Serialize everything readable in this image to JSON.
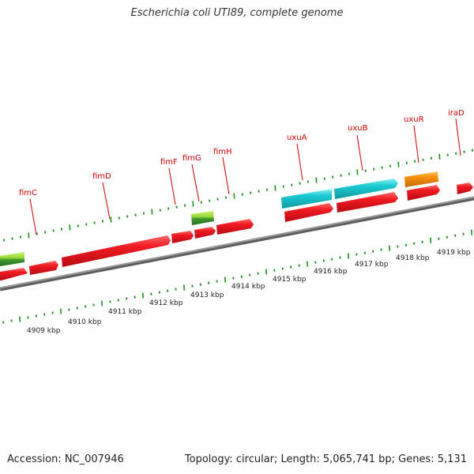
{
  "title": "Escherichia coli UTI89, complete genome",
  "footer": {
    "accession": "Accession: NC_007946",
    "summary": "Topology: circular; Length: 5,065,741 bp; Genes: 5,131"
  },
  "colors": {
    "gene_label": "#cc0000",
    "cds": "#e8121b",
    "cds_top": "#ff5a5a",
    "rna": "#18c4cc",
    "rna_top": "#7fe6ea",
    "other": "#f28a10",
    "other_top": "#ffc060",
    "gene_green": "#2e8b2e",
    "gene_green_top": "#a8e83c",
    "backbone": "#808080",
    "tick": "#1e8b1e"
  },
  "gene_labels": [
    "fimC",
    "fimD",
    "fimF",
    "fimG",
    "fimH",
    "uxuA",
    "uxuB",
    "uxuR",
    "iraD"
  ],
  "kbp_labels": [
    "4909 kbp",
    "4910 kbp",
    "4911 kbp",
    "4912 kbp",
    "4913 kbp",
    "4914 kbp",
    "4915 kbp",
    "4916 kbp",
    "4917 kbp",
    "4918 kbp",
    "4919 kbp"
  ]
}
